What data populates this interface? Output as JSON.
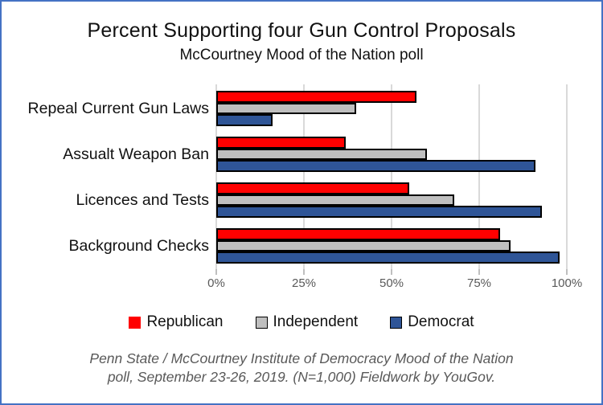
{
  "window": {
    "border_color": "#4472C4",
    "background": "#FFFFFF"
  },
  "header": {
    "title": "Percent Supporting four Gun Control Proposals",
    "subtitle": "McCourtney Mood of the Nation poll"
  },
  "chart_data": {
    "type": "bar",
    "orientation": "horizontal",
    "title": "Percent Supporting four Gun Control Proposals",
    "subtitle": "McCourtney Mood of the Nation poll",
    "categories": [
      "Repeal Current Gun Laws",
      "Assualt Weapon Ban",
      "Licences and Tests",
      "Background Checks"
    ],
    "series": [
      {
        "name": "Republican",
        "color": "#FF0000",
        "swatch_border": "#FF0000",
        "values": [
          57,
          37,
          55,
          81
        ]
      },
      {
        "name": "Independent",
        "color": "#BFBFBF",
        "swatch_border": "#000000",
        "values": [
          40,
          60,
          68,
          84
        ]
      },
      {
        "name": "Democrat",
        "color": "#2F5597",
        "swatch_border": "#000000",
        "values": [
          16,
          91,
          93,
          98
        ]
      }
    ],
    "bar_outline": "#000000",
    "x_ticks": [
      "0%",
      "25%",
      "50%",
      "75%",
      "100%"
    ],
    "x_tick_values": [
      0,
      25,
      50,
      75,
      100
    ],
    "xlim": [
      0,
      100
    ],
    "grid": true,
    "gridline_color": "#D9D9D9",
    "legend_position": "bottom"
  },
  "footer": {
    "line1": "Penn State / McCourtney Institute of Democracy Mood of the Nation",
    "line2": "poll, September 23-26, 2019.  (N=1,000) Fieldwork by YouGov."
  }
}
